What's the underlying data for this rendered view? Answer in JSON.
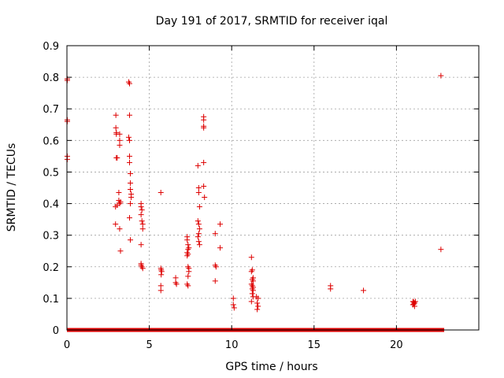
{
  "chart_data": {
    "type": "scatter",
    "title": "Day 191 of 2017, SRMTID for receiver iqal",
    "xlabel": "GPS time / hours",
    "ylabel": "SRMTID / TECUs",
    "xlim": [
      0,
      25
    ],
    "ylim": [
      0,
      0.9
    ],
    "x_ticks": [
      0,
      5,
      10,
      15,
      20
    ],
    "x_tick_labels": [
      "0",
      "5",
      "10",
      "15",
      "20"
    ],
    "y_ticks": [
      0,
      0.1,
      0.2,
      0.3,
      0.4,
      0.5,
      0.6,
      0.7,
      0.8,
      0.9
    ],
    "y_tick_labels": [
      "0",
      "0.1",
      "0.2",
      "0.3",
      "0.4",
      "0.5",
      "0.6",
      "0.7",
      "0.8",
      "0.9"
    ],
    "grid": true,
    "marker": "plus",
    "color": "#dd0000",
    "baseline_range": [
      0,
      22.9
    ],
    "series": [
      {
        "name": "SRMTID",
        "points": [
          [
            0.02,
            0.79
          ],
          [
            0.02,
            0.795
          ],
          [
            0.02,
            0.66
          ],
          [
            0.02,
            0.665
          ],
          [
            0.02,
            0.55
          ],
          [
            0.02,
            0.54
          ],
          [
            2.97,
            0.68
          ],
          [
            2.97,
            0.64
          ],
          [
            3.0,
            0.625
          ],
          [
            3.0,
            0.62
          ],
          [
            3.0,
            0.545
          ],
          [
            3.05,
            0.545
          ],
          [
            3.2,
            0.62
          ],
          [
            3.2,
            0.6
          ],
          [
            3.2,
            0.585
          ],
          [
            2.95,
            0.39
          ],
          [
            3.05,
            0.395
          ],
          [
            3.15,
            0.41
          ],
          [
            3.2,
            0.4
          ],
          [
            3.25,
            0.405
          ],
          [
            3.15,
            0.435
          ],
          [
            2.95,
            0.335
          ],
          [
            3.2,
            0.32
          ],
          [
            3.25,
            0.25
          ],
          [
            3.75,
            0.785
          ],
          [
            3.8,
            0.78
          ],
          [
            3.8,
            0.68
          ],
          [
            3.75,
            0.61
          ],
          [
            3.8,
            0.6
          ],
          [
            3.8,
            0.55
          ],
          [
            3.8,
            0.53
          ],
          [
            3.85,
            0.495
          ],
          [
            3.85,
            0.465
          ],
          [
            3.85,
            0.445
          ],
          [
            3.9,
            0.43
          ],
          [
            3.9,
            0.42
          ],
          [
            3.85,
            0.4
          ],
          [
            3.8,
            0.355
          ],
          [
            3.85,
            0.285
          ],
          [
            4.5,
            0.4
          ],
          [
            4.5,
            0.39
          ],
          [
            4.55,
            0.38
          ],
          [
            4.5,
            0.365
          ],
          [
            4.55,
            0.345
          ],
          [
            4.6,
            0.335
          ],
          [
            4.6,
            0.32
          ],
          [
            4.5,
            0.27
          ],
          [
            4.5,
            0.21
          ],
          [
            4.5,
            0.205
          ],
          [
            4.55,
            0.2
          ],
          [
            4.6,
            0.195
          ],
          [
            5.7,
            0.435
          ],
          [
            5.7,
            0.195
          ],
          [
            5.72,
            0.19
          ],
          [
            5.75,
            0.185
          ],
          [
            5.72,
            0.175
          ],
          [
            5.7,
            0.14
          ],
          [
            5.7,
            0.125
          ],
          [
            6.6,
            0.165
          ],
          [
            6.6,
            0.15
          ],
          [
            6.65,
            0.145
          ],
          [
            7.3,
            0.295
          ],
          [
            7.3,
            0.285
          ],
          [
            7.35,
            0.27
          ],
          [
            7.4,
            0.26
          ],
          [
            7.35,
            0.255
          ],
          [
            7.3,
            0.245
          ],
          [
            7.35,
            0.24
          ],
          [
            7.3,
            0.235
          ],
          [
            7.35,
            0.2
          ],
          [
            7.4,
            0.195
          ],
          [
            7.4,
            0.185
          ],
          [
            7.35,
            0.17
          ],
          [
            7.3,
            0.145
          ],
          [
            7.35,
            0.14
          ],
          [
            7.95,
            0.52
          ],
          [
            8.0,
            0.45
          ],
          [
            8.0,
            0.435
          ],
          [
            8.05,
            0.39
          ],
          [
            7.95,
            0.345
          ],
          [
            8.0,
            0.335
          ],
          [
            8.05,
            0.32
          ],
          [
            8.0,
            0.305
          ],
          [
            7.95,
            0.295
          ],
          [
            8.0,
            0.28
          ],
          [
            8.05,
            0.27
          ],
          [
            8.3,
            0.675
          ],
          [
            8.3,
            0.665
          ],
          [
            8.3,
            0.645
          ],
          [
            8.3,
            0.64
          ],
          [
            8.3,
            0.53
          ],
          [
            8.3,
            0.455
          ],
          [
            8.35,
            0.42
          ],
          [
            9.0,
            0.305
          ],
          [
            9.0,
            0.205
          ],
          [
            9.05,
            0.2
          ],
          [
            9.0,
            0.155
          ],
          [
            9.3,
            0.335
          ],
          [
            9.3,
            0.26
          ],
          [
            10.1,
            0.1
          ],
          [
            10.1,
            0.08
          ],
          [
            10.15,
            0.07
          ],
          [
            11.2,
            0.23
          ],
          [
            11.25,
            0.19
          ],
          [
            11.2,
            0.185
          ],
          [
            11.3,
            0.165
          ],
          [
            11.25,
            0.16
          ],
          [
            11.3,
            0.155
          ],
          [
            11.2,
            0.145
          ],
          [
            11.25,
            0.14
          ],
          [
            11.3,
            0.135
          ],
          [
            11.25,
            0.13
          ],
          [
            11.3,
            0.125
          ],
          [
            11.25,
            0.115
          ],
          [
            11.3,
            0.105
          ],
          [
            11.2,
            0.09
          ],
          [
            11.5,
            0.105
          ],
          [
            11.6,
            0.1
          ],
          [
            11.55,
            0.085
          ],
          [
            11.6,
            0.075
          ],
          [
            11.55,
            0.065
          ],
          [
            16.0,
            0.14
          ],
          [
            16.0,
            0.13
          ],
          [
            18.0,
            0.125
          ],
          [
            21.0,
            0.09
          ],
          [
            21.05,
            0.088
          ],
          [
            21.1,
            0.085
          ],
          [
            21.15,
            0.09
          ],
          [
            21.0,
            0.08
          ],
          [
            21.1,
            0.075
          ],
          [
            21.05,
            0.082
          ],
          [
            22.7,
            0.805
          ],
          [
            22.7,
            0.255
          ]
        ]
      }
    ]
  }
}
